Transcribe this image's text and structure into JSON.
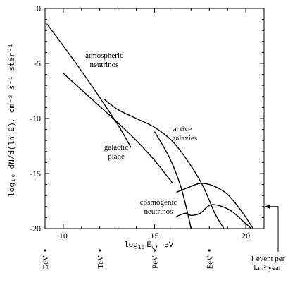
{
  "chart_data": {
    "type": "line",
    "title": "",
    "xlabel_main": "log",
    "xlabel_sub": "10",
    "xlabel_rest": "E",
    "xlabel_sub2": "ν",
    "xlabel_unit": ", eV",
    "ylabel": "log₁₀ dN/d(ln E), cm⁻² s⁻¹ ster⁻¹",
    "xlim": [
      9,
      21
    ],
    "ylim": [
      -20,
      0
    ],
    "x_ticks": [
      "10",
      "15",
      "20"
    ],
    "y_ticks": [
      "0",
      "-5",
      "-10",
      "-15",
      "-20"
    ],
    "energy_marks": [
      {
        "label": "GeV",
        "x": 9
      },
      {
        "label": "TeV",
        "x": 12
      },
      {
        "label": "PeV",
        "x": 15
      },
      {
        "label": "EeV",
        "x": 18
      }
    ],
    "annotations": {
      "atmospheric_1": "atmospheric",
      "atmospheric_2": "neutrinos",
      "active_1": "active",
      "active_2": "galaxies",
      "galactic_1": "galactic",
      "galactic_2": "plane",
      "cosmogenic_1": "cosmogenic",
      "cosmogenic_2": "neutrinos",
      "event_1": "1 event per",
      "event_2": "km² year"
    },
    "event_level_y": -18.0,
    "series": [
      {
        "id": "atmospheric",
        "x": [
          9.1,
          10,
          11,
          12,
          13,
          13.7
        ],
        "y": [
          -1.4,
          -3.4,
          -5.7,
          -8.1,
          -10.6,
          -12.6
        ]
      },
      {
        "id": "galactic",
        "x": [
          10,
          11,
          12,
          13,
          14,
          15,
          16
        ],
        "y": [
          -5.9,
          -7.4,
          -8.9,
          -10.4,
          -12.0,
          -13.8,
          -15.9
        ]
      },
      {
        "id": "agn_upper",
        "x": [
          12.2,
          13,
          14,
          15,
          16,
          17,
          17.7,
          18.3,
          18.8
        ],
        "y": [
          -8.2,
          -9.2,
          -10.0,
          -10.8,
          -12.1,
          -14.3,
          -16.3,
          -18.6,
          -20.0
        ]
      },
      {
        "id": "agn_lower",
        "x": [
          15,
          15.8,
          16.4,
          16.8,
          17.0
        ],
        "y": [
          -11.2,
          -13.5,
          -16.0,
          -18.5,
          -20.0
        ]
      },
      {
        "id": "cosmogenic_upper",
        "x": [
          16.2,
          16.8,
          17.5,
          18.2,
          19,
          19.8,
          20.4
        ],
        "y": [
          -16.7,
          -16.3,
          -15.9,
          -16.1,
          -16.9,
          -18.5,
          -20.0
        ]
      },
      {
        "id": "cosmogenic_lower",
        "x": [
          16.2,
          16.7,
          17.0,
          17.5,
          18,
          18.5,
          19.2,
          19.9,
          20.3
        ],
        "y": [
          -18.9,
          -18.6,
          -18.8,
          -18.6,
          -17.9,
          -17.9,
          -18.4,
          -19.4,
          -20.0
        ]
      }
    ]
  }
}
